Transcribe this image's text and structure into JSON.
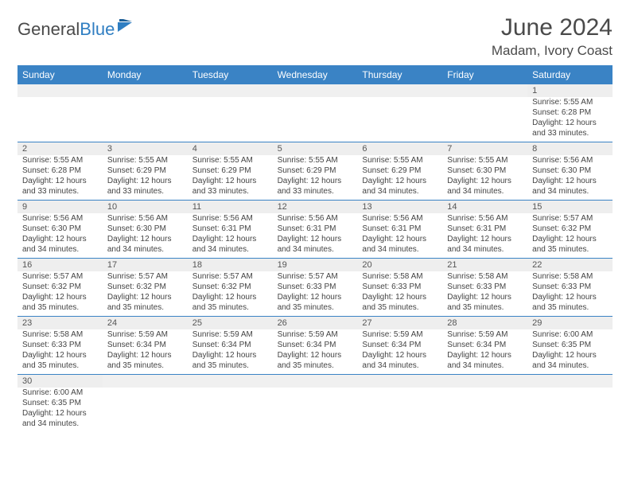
{
  "logo": {
    "text1": "General",
    "text2": "Blue"
  },
  "title": "June 2024",
  "location": "Madam, Ivory Coast",
  "colors": {
    "header_bg": "#3a83c5",
    "header_text": "#ffffff",
    "daynum_bg": "#eeeeee",
    "rule": "#3a83c5",
    "logo_blue": "#2f7ec2",
    "text": "#4a4a4a"
  },
  "day_names": [
    "Sunday",
    "Monday",
    "Tuesday",
    "Wednesday",
    "Thursday",
    "Friday",
    "Saturday"
  ],
  "weeks": [
    [
      null,
      null,
      null,
      null,
      null,
      null,
      {
        "n": "1",
        "sr": "5:55 AM",
        "ss": "6:28 PM",
        "dl": "12 hours and 33 minutes."
      }
    ],
    [
      {
        "n": "2",
        "sr": "5:55 AM",
        "ss": "6:28 PM",
        "dl": "12 hours and 33 minutes."
      },
      {
        "n": "3",
        "sr": "5:55 AM",
        "ss": "6:29 PM",
        "dl": "12 hours and 33 minutes."
      },
      {
        "n": "4",
        "sr": "5:55 AM",
        "ss": "6:29 PM",
        "dl": "12 hours and 33 minutes."
      },
      {
        "n": "5",
        "sr": "5:55 AM",
        "ss": "6:29 PM",
        "dl": "12 hours and 33 minutes."
      },
      {
        "n": "6",
        "sr": "5:55 AM",
        "ss": "6:29 PM",
        "dl": "12 hours and 34 minutes."
      },
      {
        "n": "7",
        "sr": "5:55 AM",
        "ss": "6:30 PM",
        "dl": "12 hours and 34 minutes."
      },
      {
        "n": "8",
        "sr": "5:56 AM",
        "ss": "6:30 PM",
        "dl": "12 hours and 34 minutes."
      }
    ],
    [
      {
        "n": "9",
        "sr": "5:56 AM",
        "ss": "6:30 PM",
        "dl": "12 hours and 34 minutes."
      },
      {
        "n": "10",
        "sr": "5:56 AM",
        "ss": "6:30 PM",
        "dl": "12 hours and 34 minutes."
      },
      {
        "n": "11",
        "sr": "5:56 AM",
        "ss": "6:31 PM",
        "dl": "12 hours and 34 minutes."
      },
      {
        "n": "12",
        "sr": "5:56 AM",
        "ss": "6:31 PM",
        "dl": "12 hours and 34 minutes."
      },
      {
        "n": "13",
        "sr": "5:56 AM",
        "ss": "6:31 PM",
        "dl": "12 hours and 34 minutes."
      },
      {
        "n": "14",
        "sr": "5:56 AM",
        "ss": "6:31 PM",
        "dl": "12 hours and 34 minutes."
      },
      {
        "n": "15",
        "sr": "5:57 AM",
        "ss": "6:32 PM",
        "dl": "12 hours and 35 minutes."
      }
    ],
    [
      {
        "n": "16",
        "sr": "5:57 AM",
        "ss": "6:32 PM",
        "dl": "12 hours and 35 minutes."
      },
      {
        "n": "17",
        "sr": "5:57 AM",
        "ss": "6:32 PM",
        "dl": "12 hours and 35 minutes."
      },
      {
        "n": "18",
        "sr": "5:57 AM",
        "ss": "6:32 PM",
        "dl": "12 hours and 35 minutes."
      },
      {
        "n": "19",
        "sr": "5:57 AM",
        "ss": "6:33 PM",
        "dl": "12 hours and 35 minutes."
      },
      {
        "n": "20",
        "sr": "5:58 AM",
        "ss": "6:33 PM",
        "dl": "12 hours and 35 minutes."
      },
      {
        "n": "21",
        "sr": "5:58 AM",
        "ss": "6:33 PM",
        "dl": "12 hours and 35 minutes."
      },
      {
        "n": "22",
        "sr": "5:58 AM",
        "ss": "6:33 PM",
        "dl": "12 hours and 35 minutes."
      }
    ],
    [
      {
        "n": "23",
        "sr": "5:58 AM",
        "ss": "6:33 PM",
        "dl": "12 hours and 35 minutes."
      },
      {
        "n": "24",
        "sr": "5:59 AM",
        "ss": "6:34 PM",
        "dl": "12 hours and 35 minutes."
      },
      {
        "n": "25",
        "sr": "5:59 AM",
        "ss": "6:34 PM",
        "dl": "12 hours and 35 minutes."
      },
      {
        "n": "26",
        "sr": "5:59 AM",
        "ss": "6:34 PM",
        "dl": "12 hours and 35 minutes."
      },
      {
        "n": "27",
        "sr": "5:59 AM",
        "ss": "6:34 PM",
        "dl": "12 hours and 34 minutes."
      },
      {
        "n": "28",
        "sr": "5:59 AM",
        "ss": "6:34 PM",
        "dl": "12 hours and 34 minutes."
      },
      {
        "n": "29",
        "sr": "6:00 AM",
        "ss": "6:35 PM",
        "dl": "12 hours and 34 minutes."
      }
    ],
    [
      {
        "n": "30",
        "sr": "6:00 AM",
        "ss": "6:35 PM",
        "dl": "12 hours and 34 minutes."
      },
      null,
      null,
      null,
      null,
      null,
      null
    ]
  ],
  "labels": {
    "sunrise": "Sunrise: ",
    "sunset": "Sunset: ",
    "daylight": "Daylight: "
  }
}
